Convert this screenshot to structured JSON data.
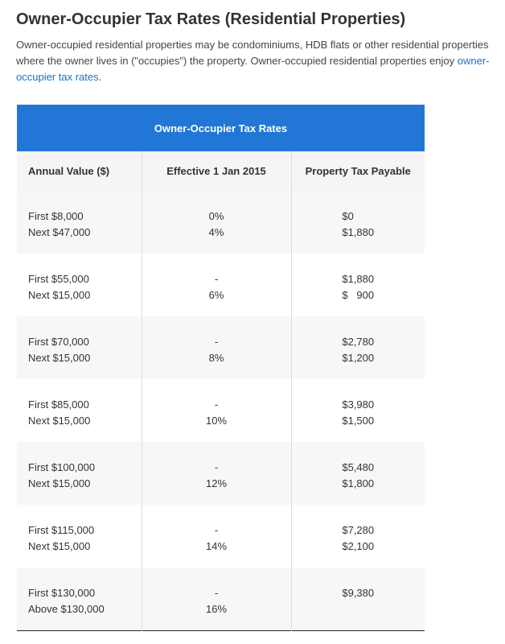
{
  "title": "Owner-Occupier Tax Rates (Residential Properties)",
  "intro": {
    "text": "Owner-occupied residential properties may be condominiums, HDB flats or other residential properties where the owner lives in (\"occupies\") the property. Owner-occupied residential properties enjoy ",
    "link": "owner-occupier tax rates",
    "end": "."
  },
  "table": {
    "caption": "Owner-Occupier Tax Rates",
    "headers": [
      "Annual Value ($)",
      "Effective 1 Jan 2015",
      "Property Tax Payable"
    ],
    "rows": [
      {
        "av": [
          "First $8,000",
          "Next $47,000"
        ],
        "rate": [
          "0%",
          "4%"
        ],
        "tax": [
          "$0",
          "$1,880"
        ]
      },
      {
        "av": [
          "First $55,000",
          "Next $15,000"
        ],
        "rate": [
          "-",
          "6%"
        ],
        "tax": [
          "$1,880",
          "$   900"
        ]
      },
      {
        "av": [
          "First $70,000",
          "Next $15,000"
        ],
        "rate": [
          "-",
          "8%"
        ],
        "tax": [
          "$2,780",
          "$1,200"
        ]
      },
      {
        "av": [
          "First $85,000",
          "Next $15,000"
        ],
        "rate": [
          "-",
          "10%"
        ],
        "tax": [
          "$3,980",
          "$1,500"
        ]
      },
      {
        "av": [
          "First $100,000",
          "Next $15,000"
        ],
        "rate": [
          "-",
          "12%"
        ],
        "tax": [
          "$5,480",
          "$1,800"
        ]
      },
      {
        "av": [
          "First $115,000",
          "Next $15,000"
        ],
        "rate": [
          "-",
          "14%"
        ],
        "tax": [
          "$7,280",
          "$2,100"
        ]
      },
      {
        "av": [
          "First $130,000",
          "Above $130,000"
        ],
        "rate": [
          "-",
          "16%"
        ],
        "tax": [
          "$9,380",
          ""
        ]
      }
    ]
  },
  "colors": {
    "header_blue": "#2277d6",
    "link": "#1a6fc9"
  }
}
